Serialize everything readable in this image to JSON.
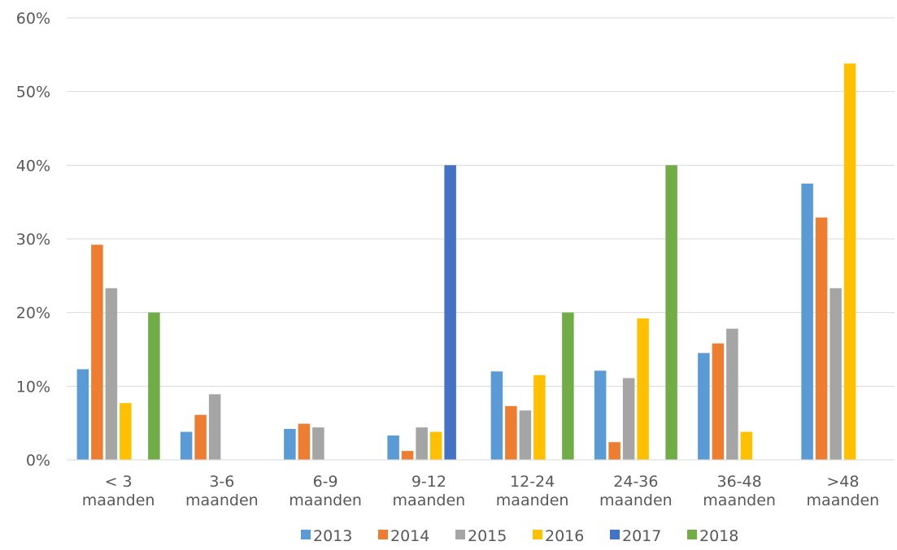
{
  "chart_data": {
    "type": "bar",
    "categories": [
      [
        "< 3",
        "maanden"
      ],
      [
        "3-6",
        "maanden"
      ],
      [
        "6-9",
        "maanden"
      ],
      [
        "9-12",
        "maanden"
      ],
      [
        "12-24",
        "maanden"
      ],
      [
        "24-36",
        "maanden"
      ],
      [
        "36-48",
        "maanden"
      ],
      [
        ">48",
        "maanden"
      ]
    ],
    "series": [
      {
        "name": "2013",
        "color": "#5B9BD5",
        "values": [
          12.3,
          3.8,
          4.2,
          3.3,
          12.0,
          12.1,
          14.5,
          37.5
        ]
      },
      {
        "name": "2014",
        "color": "#ED7D31",
        "values": [
          29.2,
          6.1,
          4.9,
          1.2,
          7.3,
          2.4,
          15.8,
          32.9
        ]
      },
      {
        "name": "2015",
        "color": "#A5A5A5",
        "values": [
          23.3,
          8.9,
          4.4,
          4.4,
          6.7,
          11.1,
          17.8,
          23.3
        ]
      },
      {
        "name": "2016",
        "color": "#FFC000",
        "values": [
          7.7,
          0,
          0,
          3.8,
          11.5,
          19.2,
          3.8,
          53.8
        ]
      },
      {
        "name": "2017",
        "color": "#4472C4",
        "values": [
          0,
          0,
          0,
          40.0,
          0,
          0,
          0,
          0
        ]
      },
      {
        "name": "2018",
        "color": "#70AD47",
        "values": [
          20.0,
          0,
          0,
          0,
          20.0,
          40.0,
          0,
          0
        ]
      }
    ],
    "yticks": [
      "0%",
      "10%",
      "20%",
      "30%",
      "40%",
      "50%",
      "60%"
    ],
    "ylim": [
      0,
      60
    ],
    "grid": true,
    "legend_position": "bottom"
  }
}
